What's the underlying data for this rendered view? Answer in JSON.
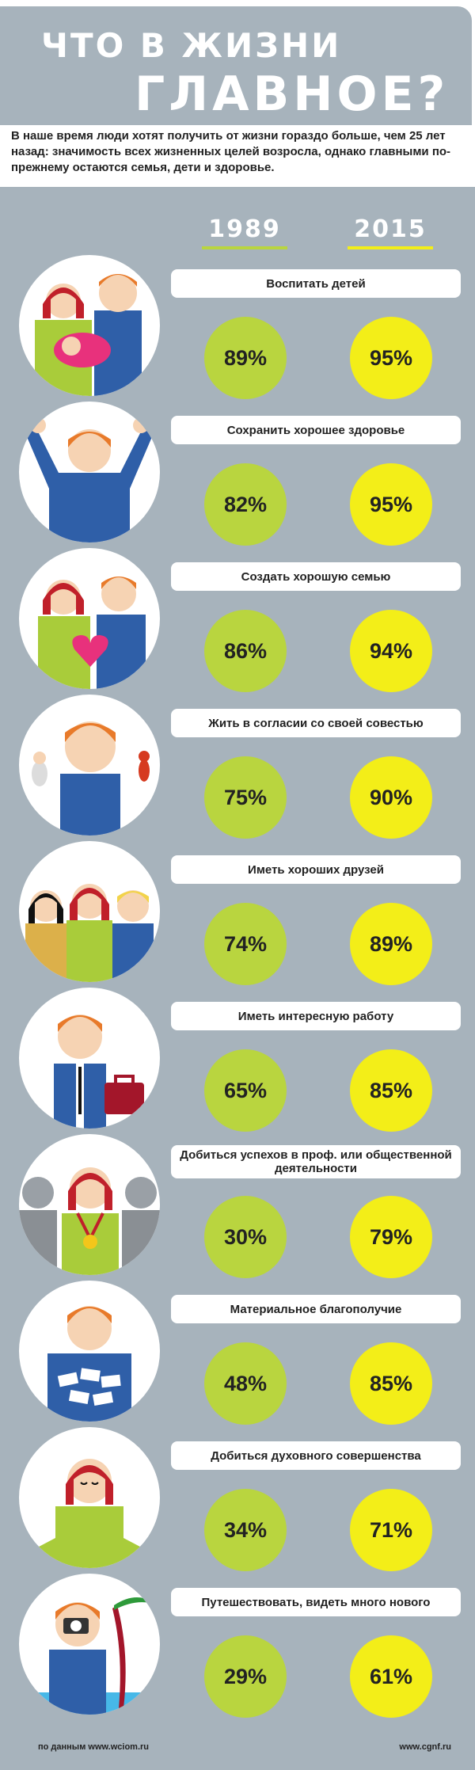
{
  "title": {
    "line1": "Что в жизни",
    "line2": "главное?"
  },
  "intro": "В наше время люди хотят получить от жизни гораздо больше, чем 25 лет назад: значимость всех жизненных целей возросла, однако главными по-прежнему остаются семья, дети и здоровье.",
  "years": {
    "y1": "1989",
    "y2": "2015"
  },
  "colors": {
    "green": "#b9d53f",
    "yellow": "#f3ee18",
    "panel": "#a7b3bc"
  },
  "rows": [
    {
      "label": "Воспитать детей",
      "v1989": "89%",
      "v2015": "95%",
      "icon": "parents-with-baby-icon"
    },
    {
      "label": "Сохранить хорошее здоровье",
      "v1989": "82%",
      "v2015": "95%",
      "icon": "strong-man-icon"
    },
    {
      "label": "Создать хорошую семью",
      "v1989": "86%",
      "v2015": "94%",
      "icon": "couple-heart-icon"
    },
    {
      "label": "Жить в согласии со своей совестью",
      "v1989": "75%",
      "v2015": "90%",
      "icon": "angel-devil-icon"
    },
    {
      "label": "Иметь хороших друзей",
      "v1989": "74%",
      "v2015": "89%",
      "icon": "friends-icon"
    },
    {
      "label": "Иметь интересную работу",
      "v1989": "65%",
      "v2015": "85%",
      "icon": "worker-briefcase-icon"
    },
    {
      "label": "Добиться успехов в проф. или общественной деятельности",
      "v1989": "30%",
      "v2015": "79%",
      "icon": "medal-winner-icon"
    },
    {
      "label": "Материальное благополучие",
      "v1989": "48%",
      "v2015": "85%",
      "icon": "money-icon"
    },
    {
      "label": "Добиться духовного совершенства",
      "v1989": "34%",
      "v2015": "71%",
      "icon": "meditation-icon"
    },
    {
      "label": "Путешествовать, видеть много нового",
      "v1989": "29%",
      "v2015": "61%",
      "icon": "traveler-camera-icon"
    }
  ],
  "footer": {
    "source": "по данным www.wciom.ru",
    "site": "www.cgnf.ru"
  }
}
